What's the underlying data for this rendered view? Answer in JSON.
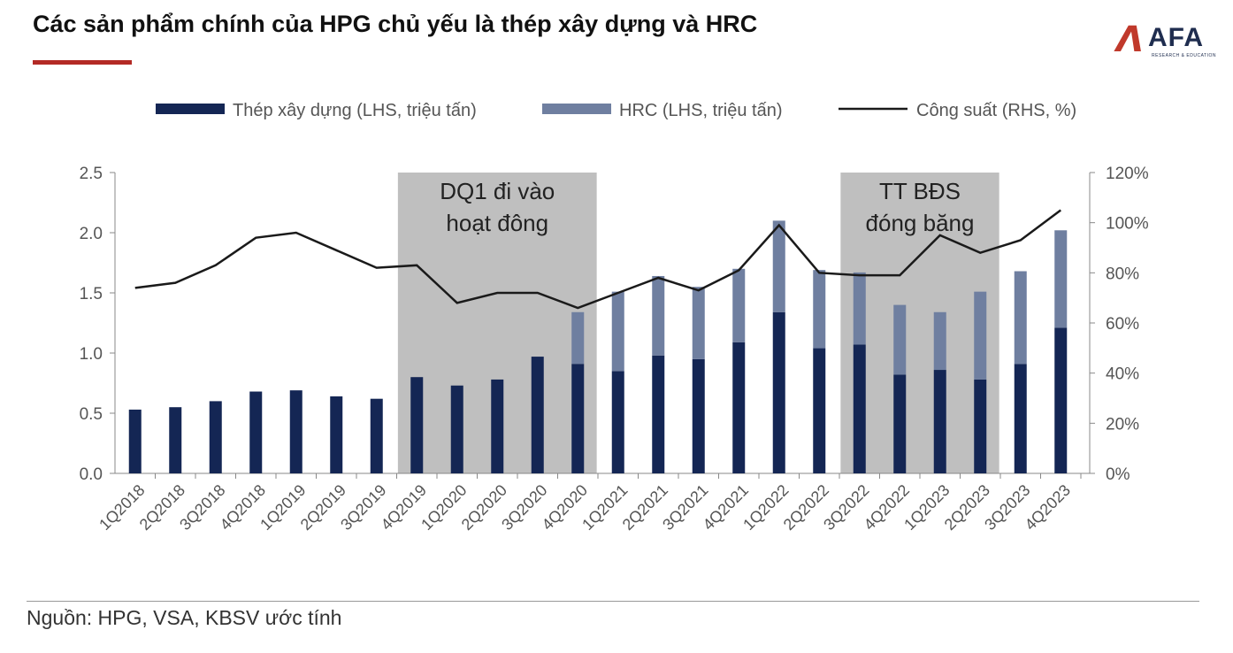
{
  "header": {
    "title": "Các sản phẩm chính của HPG chủ yếu là thép xây dựng và HRC",
    "logo_mark": "Λ",
    "logo_word": "AFA",
    "logo_tagline": "RESEARCH & EDUCATION"
  },
  "footer": {
    "source": "Nguồn: HPG, VSA, KBSV ước tính"
  },
  "colors": {
    "steel": "#142654",
    "hrc": "#6f7fa0",
    "capacity_line": "#1a1a1a",
    "shade": "#bfbfbf",
    "accent": "#b32a25"
  },
  "chart_data": {
    "type": "bar",
    "stacked": true,
    "categories": [
      "1Q2018",
      "2Q2018",
      "3Q2018",
      "4Q2018",
      "1Q2019",
      "2Q2019",
      "3Q2019",
      "4Q2019",
      "1Q2020",
      "2Q2020",
      "3Q2020",
      "4Q2020",
      "1Q2021",
      "2Q2021",
      "3Q2021",
      "4Q2021",
      "1Q2022",
      "2Q2022",
      "3Q2022",
      "4Q2022",
      "1Q2023",
      "2Q2023",
      "3Q2023",
      "4Q2023"
    ],
    "series": [
      {
        "name": "Thép xây dựng (LHS, triệu tấn)",
        "type": "bar",
        "axis": "left",
        "values": [
          0.53,
          0.55,
          0.6,
          0.68,
          0.69,
          0.64,
          0.62,
          0.8,
          0.73,
          0.78,
          0.97,
          0.91,
          0.85,
          0.98,
          0.95,
          1.09,
          1.34,
          1.04,
          1.07,
          0.82,
          0.86,
          0.78,
          0.91,
          1.21
        ]
      },
      {
        "name": "HRC (LHS, triệu tấn)",
        "type": "bar",
        "axis": "left",
        "values": [
          0,
          0,
          0,
          0,
          0,
          0,
          0,
          0,
          0,
          0,
          0,
          0.43,
          0.66,
          0.66,
          0.6,
          0.61,
          0.76,
          0.65,
          0.6,
          0.58,
          0.48,
          0.73,
          0.77,
          0.81
        ]
      },
      {
        "name": "Công suất (RHS, %)",
        "type": "line",
        "axis": "right",
        "values": [
          74,
          76,
          83,
          94,
          96,
          89,
          82,
          83,
          68,
          72,
          72,
          66,
          72,
          78,
          73,
          81,
          99,
          80,
          79,
          79,
          95,
          88,
          93,
          105
        ]
      }
    ],
    "y_left": {
      "min": 0,
      "max": 2.5,
      "ticks": [
        "0.0",
        "0.5",
        "1.0",
        "1.5",
        "2.0",
        "2.5"
      ]
    },
    "y_right": {
      "min": 0,
      "max": 120,
      "ticks": [
        "0%",
        "20%",
        "40%",
        "60%",
        "80%",
        "100%",
        "120%"
      ]
    },
    "legend_position": "top",
    "grid": false,
    "annotations": [
      {
        "text_lines": [
          "DQ1 đi vào",
          "hoạt đông"
        ],
        "from": "4Q2019",
        "to": "4Q2020"
      },
      {
        "text_lines": [
          "TT BĐS",
          "đóng băng"
        ],
        "from": "3Q2022",
        "to": "2Q2023"
      }
    ]
  }
}
